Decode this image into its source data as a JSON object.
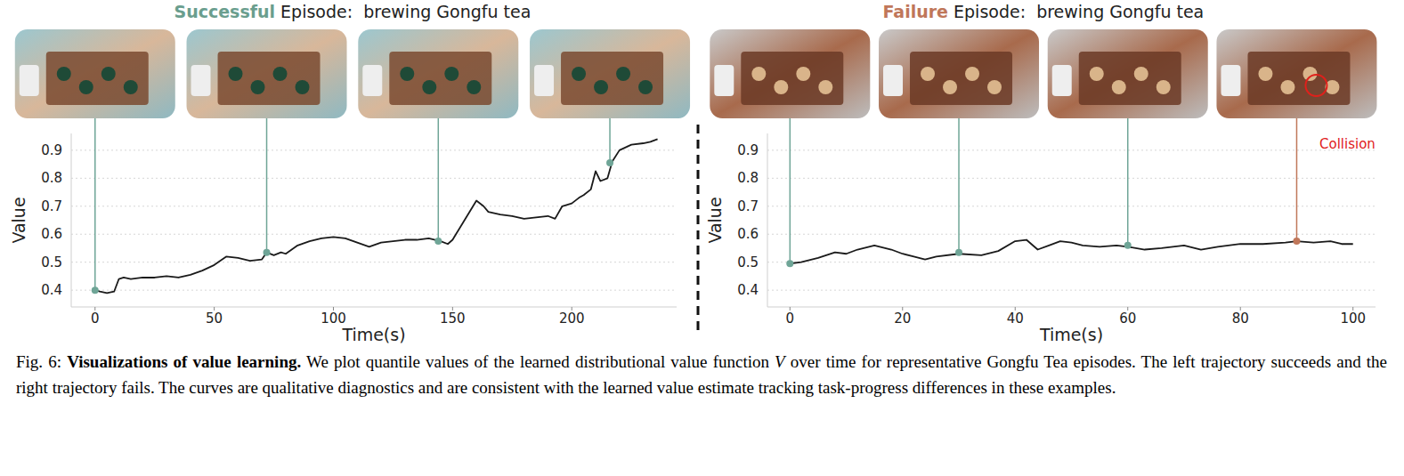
{
  "chart_data": [
    {
      "type": "line",
      "title_lead": "Successful",
      "title_lead_color": "#6a9e8e",
      "title": "Episode:  brewing Gongfu tea",
      "x_label": "Time(s)",
      "y_label": "Value",
      "color": "#1a1a1a",
      "grid": true,
      "xlim": [
        -10,
        244
      ],
      "ylim": [
        0.34,
        0.96
      ],
      "xticks": [
        0,
        50,
        100,
        150,
        200
      ],
      "yticks": [
        0.4,
        0.5,
        0.6,
        0.7,
        0.8,
        0.9
      ],
      "x": [
        0,
        2,
        5,
        8,
        10,
        12,
        15,
        20,
        25,
        30,
        35,
        40,
        45,
        50,
        55,
        60,
        65,
        70,
        72,
        75,
        78,
        80,
        85,
        90,
        95,
        100,
        105,
        110,
        115,
        120,
        125,
        130,
        135,
        140,
        145,
        148,
        150,
        155,
        160,
        163,
        165,
        170,
        175,
        180,
        185,
        190,
        193,
        196,
        200,
        203,
        205,
        208,
        210,
        212,
        215,
        217,
        220,
        225,
        230,
        233,
        236
      ],
      "values": [
        0.4,
        0.395,
        0.39,
        0.395,
        0.44,
        0.445,
        0.44,
        0.445,
        0.445,
        0.45,
        0.445,
        0.455,
        0.47,
        0.49,
        0.52,
        0.515,
        0.505,
        0.51,
        0.535,
        0.525,
        0.535,
        0.53,
        0.56,
        0.575,
        0.585,
        0.59,
        0.585,
        0.57,
        0.555,
        0.57,
        0.575,
        0.58,
        0.58,
        0.585,
        0.575,
        0.565,
        0.58,
        0.65,
        0.72,
        0.7,
        0.68,
        0.67,
        0.665,
        0.655,
        0.66,
        0.665,
        0.655,
        0.7,
        0.71,
        0.73,
        0.74,
        0.76,
        0.825,
        0.79,
        0.8,
        0.86,
        0.9,
        0.92,
        0.925,
        0.93,
        0.94
      ],
      "markers": {
        "x": [
          0,
          72,
          144,
          216
        ],
        "values": [
          0.4,
          0.535,
          0.575,
          0.855
        ],
        "colors": [
          "#6fa597",
          "#6fa597",
          "#6fa597",
          "#6fa597"
        ]
      }
    },
    {
      "type": "line",
      "title_lead": "Failure",
      "title_lead_color": "#c0775a",
      "title": "Episode:  brewing Gongfu tea",
      "x_label": "Time(s)",
      "y_label": "Value",
      "color": "#1a1a1a",
      "grid": true,
      "xlim": [
        -4,
        104
      ],
      "ylim": [
        0.34,
        0.96
      ],
      "xticks": [
        0,
        20,
        40,
        60,
        80,
        100
      ],
      "yticks": [
        0.4,
        0.5,
        0.6,
        0.7,
        0.8,
        0.9
      ],
      "x": [
        0,
        2,
        5,
        8,
        10,
        12,
        15,
        18,
        20,
        22,
        24,
        26,
        30,
        34,
        37,
        40,
        42,
        44,
        46,
        48,
        50,
        52,
        55,
        58,
        60,
        63,
        66,
        70,
        73,
        76,
        80,
        84,
        88,
        90,
        93,
        96,
        98,
        100
      ],
      "values": [
        0.495,
        0.5,
        0.515,
        0.535,
        0.53,
        0.545,
        0.56,
        0.545,
        0.53,
        0.52,
        0.51,
        0.52,
        0.53,
        0.525,
        0.54,
        0.575,
        0.58,
        0.545,
        0.56,
        0.575,
        0.57,
        0.56,
        0.555,
        0.56,
        0.555,
        0.545,
        0.55,
        0.56,
        0.545,
        0.555,
        0.565,
        0.565,
        0.57,
        0.575,
        0.57,
        0.575,
        0.565,
        0.565
      ],
      "markers": {
        "x": [
          0,
          30,
          60,
          90
        ],
        "values": [
          0.495,
          0.535,
          0.56,
          0.575
        ],
        "colors": [
          "#6fa597",
          "#6fa597",
          "#6fa597",
          "#c0775a"
        ]
      },
      "annotation": {
        "text": "Collision",
        "x": 90,
        "color": "#e0201b"
      }
    }
  ],
  "caption": {
    "label": "Fig. 6:",
    "heading": "Visualizations of value learning.",
    "text": [
      "We plot quantile values of the learned distributional value function ",
      "V",
      " over time for representative Gongfu Tea episodes. The left trajectory succeeds and the right trajectory fails. The curves are qualitative diagnostics and are consistent with the learned value estimate tracking task-progress differences in these examples."
    ]
  }
}
